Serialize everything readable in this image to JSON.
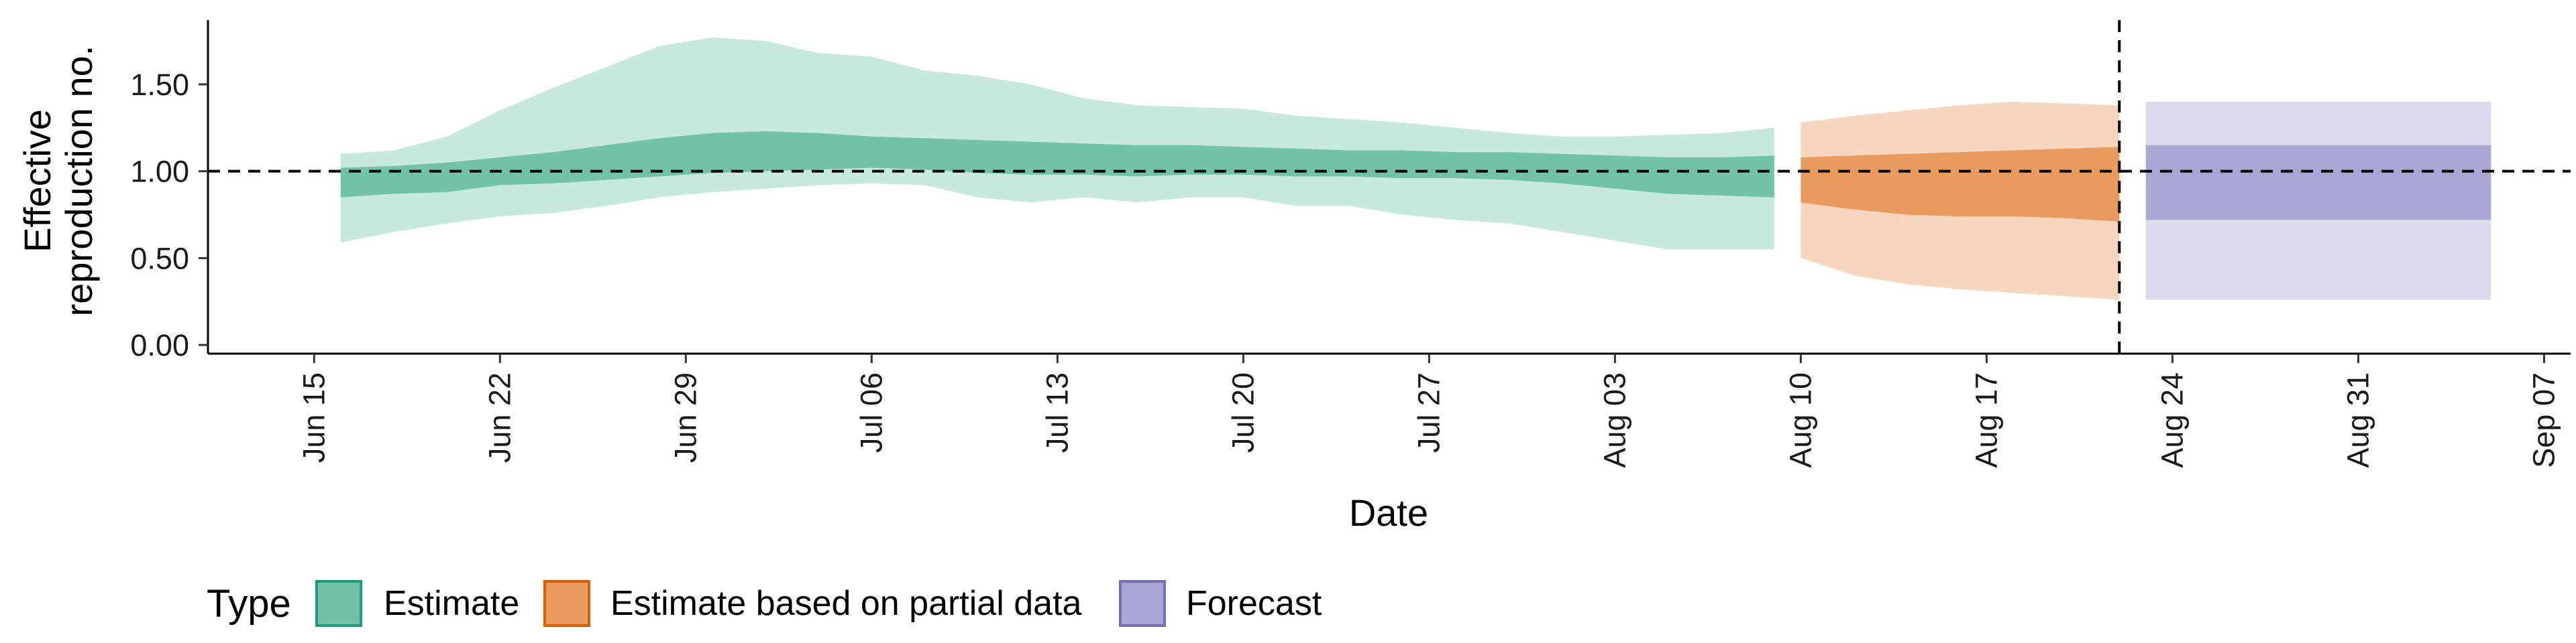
{
  "chart_data": {
    "type": "area",
    "title": "",
    "xlabel": "Date",
    "ylabel_lines": [
      "Effective",
      "reproduction no."
    ],
    "xlim": [
      "2021-06-11",
      "2021-09-08"
    ],
    "ylim": [
      -0.05,
      1.87
    ],
    "x_ticks": [
      "2021-06-15",
      "2021-06-22",
      "2021-06-29",
      "2021-07-06",
      "2021-07-13",
      "2021-07-20",
      "2021-07-27",
      "2021-08-03",
      "2021-08-10",
      "2021-08-17",
      "2021-08-24",
      "2021-08-31",
      "2021-09-07"
    ],
    "x_tick_labels": [
      "Jun 15",
      "Jun 22",
      "Jun 29",
      "Jul 06",
      "Jul 13",
      "Jul 20",
      "Jul 27",
      "Aug 03",
      "Aug 10",
      "Aug 17",
      "Aug 24",
      "Aug 31",
      "Sep 07"
    ],
    "y_ticks": [
      0,
      0.5,
      1,
      1.5
    ],
    "y_tick_labels": [
      "0.00",
      "0.50",
      "1.00",
      "1.50"
    ],
    "reference_line_y": 1.0,
    "reference_line_x": "2021-08-22",
    "grid": false,
    "legend": {
      "title": "Type",
      "position": "bottom-left",
      "entries": [
        "Estimate",
        "Estimate based on partial data",
        "Forecast"
      ]
    },
    "colors": {
      "Estimate": {
        "outer": "#c6e8dd",
        "inner": "#72c2a8",
        "border": "#1b9e77"
      },
      "Estimate based on partial data": {
        "outer": "#f6d6bf",
        "inner": "#e99b5f",
        "border": "#d95f02"
      },
      "Forecast": {
        "outer": "#dadaec",
        "inner": "#a9a6d4",
        "border": "#7570b3"
      }
    },
    "series": [
      {
        "name": "Estimate",
        "x": [
          "2021-06-16",
          "2021-06-18",
          "2021-06-20",
          "2021-06-22",
          "2021-06-24",
          "2021-06-26",
          "2021-06-28",
          "2021-06-30",
          "2021-07-02",
          "2021-07-04",
          "2021-07-06",
          "2021-07-08",
          "2021-07-10",
          "2021-07-12",
          "2021-07-14",
          "2021-07-16",
          "2021-07-18",
          "2021-07-20",
          "2021-07-22",
          "2021-07-24",
          "2021-07-26",
          "2021-07-28",
          "2021-07-30",
          "2021-08-01",
          "2021-08-03",
          "2021-08-05",
          "2021-08-07",
          "2021-08-09"
        ],
        "lower_90": [
          0.59,
          0.65,
          0.7,
          0.74,
          0.76,
          0.8,
          0.85,
          0.88,
          0.9,
          0.92,
          0.93,
          0.92,
          0.85,
          0.82,
          0.85,
          0.82,
          0.85,
          0.85,
          0.8,
          0.8,
          0.75,
          0.72,
          0.7,
          0.65,
          0.6,
          0.55,
          0.55,
          0.55
        ],
        "upper_90": [
          1.1,
          1.12,
          1.2,
          1.35,
          1.48,
          1.6,
          1.72,
          1.77,
          1.75,
          1.68,
          1.66,
          1.58,
          1.55,
          1.5,
          1.42,
          1.38,
          1.37,
          1.36,
          1.32,
          1.3,
          1.28,
          1.25,
          1.22,
          1.2,
          1.2,
          1.21,
          1.22,
          1.25
        ],
        "lower_50": [
          0.85,
          0.87,
          0.88,
          0.92,
          0.93,
          0.95,
          0.97,
          0.99,
          1.0,
          1.01,
          1.02,
          1.01,
          0.99,
          0.98,
          0.98,
          0.97,
          0.98,
          0.98,
          0.97,
          0.97,
          0.96,
          0.96,
          0.95,
          0.93,
          0.9,
          0.87,
          0.86,
          0.85
        ],
        "upper_50": [
          1.02,
          1.03,
          1.05,
          1.08,
          1.11,
          1.15,
          1.19,
          1.22,
          1.23,
          1.22,
          1.2,
          1.19,
          1.18,
          1.17,
          1.16,
          1.15,
          1.15,
          1.14,
          1.13,
          1.12,
          1.12,
          1.11,
          1.11,
          1.1,
          1.09,
          1.08,
          1.08,
          1.09
        ]
      },
      {
        "name": "Estimate based on partial data",
        "x": [
          "2021-08-10",
          "2021-08-12",
          "2021-08-14",
          "2021-08-16",
          "2021-08-18",
          "2021-08-20",
          "2021-08-22"
        ],
        "lower_90": [
          0.5,
          0.4,
          0.35,
          0.32,
          0.3,
          0.28,
          0.26
        ],
        "upper_90": [
          1.28,
          1.32,
          1.35,
          1.38,
          1.4,
          1.39,
          1.38
        ],
        "lower_50": [
          0.82,
          0.78,
          0.75,
          0.74,
          0.74,
          0.73,
          0.71
        ],
        "upper_50": [
          1.08,
          1.09,
          1.1,
          1.11,
          1.12,
          1.13,
          1.14
        ]
      },
      {
        "name": "Forecast",
        "x": [
          "2021-08-23",
          "2021-09-05"
        ],
        "lower_90": [
          0.26,
          0.26
        ],
        "upper_90": [
          1.4,
          1.4
        ],
        "lower_50": [
          0.72,
          0.72
        ],
        "upper_50": [
          1.15,
          1.15
        ]
      }
    ]
  }
}
